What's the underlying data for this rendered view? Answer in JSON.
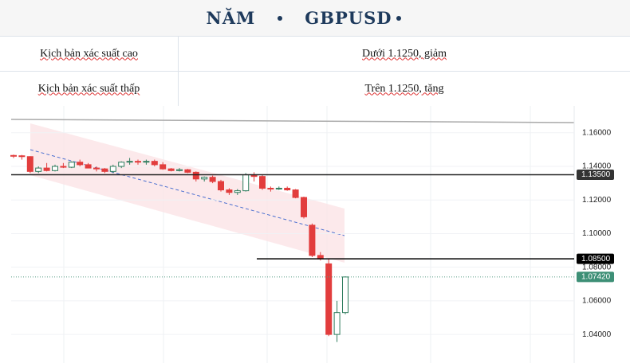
{
  "header": {
    "title": [
      "NĂM",
      "GBPUSD"
    ]
  },
  "table": {
    "rows": [
      [
        "Kịch bản xác suất cao",
        "Dưới 1.1250, giảm"
      ],
      [
        "Kịch bản xác suất thấp",
        "Trên 1.1250, tăng"
      ]
    ]
  },
  "chart_data": {
    "type": "candlestick",
    "up_color": "#2f7d5e",
    "down_color": "#e23d3d",
    "ylim": [
      1.023,
      1.176
    ],
    "yticks": [
      {
        "value": 1.16,
        "label": "1.16000"
      },
      {
        "value": 1.14,
        "label": "1.14000"
      },
      {
        "value": 1.12,
        "label": "1.12000"
      },
      {
        "value": 1.1,
        "label": "1.10000"
      },
      {
        "value": 1.08,
        "label": "1.08000"
      },
      {
        "value": 1.06,
        "label": "1.06000"
      },
      {
        "value": 1.04,
        "label": "1.04000"
      }
    ],
    "levels": [
      {
        "value": 1.135,
        "label": "1.13500",
        "color": "#222222",
        "label_color": "#333333"
      },
      {
        "value": 1.085,
        "label": "1.08500",
        "color": "#000000",
        "label_color": "#000000"
      },
      {
        "value": 1.0742,
        "label": "1.07420",
        "color": "#5a9e86",
        "label_color": "#3d8f76"
      }
    ],
    "open": [
      1.1465,
      1.1463,
      1.1458,
      1.137,
      1.139,
      1.1375,
      1.14,
      1.1395,
      1.1425,
      1.141,
      1.139,
      1.1385,
      1.137,
      1.14,
      1.1425,
      1.143,
      1.1425,
      1.143,
      1.141,
      1.1385,
      1.1375,
      1.138,
      1.1365,
      1.1325,
      1.1335,
      1.131,
      1.126,
      1.1245,
      1.1255,
      1.135,
      1.134,
      1.127,
      1.1265,
      1.127,
      1.126,
      1.1215,
      1.105,
      1.087,
      1.082,
      1.04,
      1.053
    ],
    "high": [
      1.147,
      1.1468,
      1.146,
      1.14,
      1.142,
      1.141,
      1.142,
      1.143,
      1.144,
      1.142,
      1.14,
      1.139,
      1.141,
      1.143,
      1.145,
      1.144,
      1.144,
      1.144,
      1.1425,
      1.139,
      1.139,
      1.1385,
      1.137,
      1.134,
      1.1345,
      1.132,
      1.127,
      1.1265,
      1.136,
      1.1365,
      1.135,
      1.128,
      1.128,
      1.128,
      1.1265,
      1.122,
      1.106,
      1.089,
      1.085,
      1.06,
      1.0745
    ],
    "low": [
      1.145,
      1.144,
      1.136,
      1.136,
      1.137,
      1.137,
      1.139,
      1.139,
      1.14,
      1.139,
      1.137,
      1.136,
      1.136,
      1.139,
      1.141,
      1.141,
      1.141,
      1.14,
      1.138,
      1.137,
      1.137,
      1.136,
      1.131,
      1.131,
      1.13,
      1.125,
      1.123,
      1.123,
      1.125,
      1.131,
      1.126,
      1.125,
      1.126,
      1.1255,
      1.121,
      1.109,
      1.086,
      1.084,
      1.039,
      1.0355,
      1.052
    ],
    "close": [
      1.1463,
      1.1458,
      1.137,
      1.139,
      1.1375,
      1.14,
      1.1395,
      1.1425,
      1.141,
      1.139,
      1.1385,
      1.137,
      1.14,
      1.1425,
      1.143,
      1.1425,
      1.143,
      1.141,
      1.1385,
      1.1375,
      1.138,
      1.1365,
      1.1325,
      1.1335,
      1.131,
      1.126,
      1.1245,
      1.1255,
      1.135,
      1.134,
      1.127,
      1.1265,
      1.127,
      1.126,
      1.1215,
      1.11,
      1.087,
      1.085,
      1.04,
      1.053,
      1.0742
    ]
  }
}
